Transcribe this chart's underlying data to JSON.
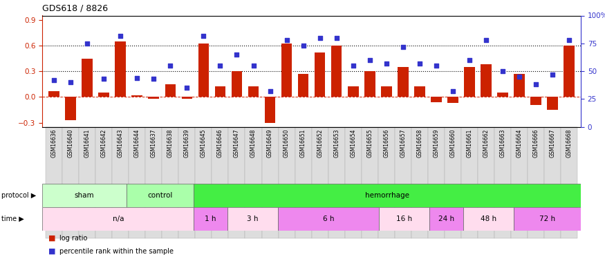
{
  "title": "GDS618 / 8826",
  "samples": [
    "GSM16636",
    "GSM16640",
    "GSM16641",
    "GSM16642",
    "GSM16643",
    "GSM16644",
    "GSM16637",
    "GSM16638",
    "GSM16639",
    "GSM16645",
    "GSM16646",
    "GSM16647",
    "GSM16648",
    "GSM16649",
    "GSM16650",
    "GSM16651",
    "GSM16652",
    "GSM16653",
    "GSM16654",
    "GSM16655",
    "GSM16656",
    "GSM16657",
    "GSM16658",
    "GSM16659",
    "GSM16660",
    "GSM16661",
    "GSM16662",
    "GSM16663",
    "GSM16664",
    "GSM16666",
    "GSM16667",
    "GSM16668"
  ],
  "log_ratio": [
    0.07,
    -0.27,
    0.45,
    0.05,
    0.65,
    0.02,
    -0.02,
    0.15,
    -0.02,
    0.62,
    0.12,
    0.3,
    0.12,
    -0.3,
    0.62,
    0.27,
    0.52,
    0.6,
    0.12,
    0.3,
    0.12,
    0.35,
    0.12,
    -0.06,
    -0.07,
    0.35,
    0.38,
    0.05,
    0.27,
    -0.09,
    -0.15,
    0.6
  ],
  "pct_rank": [
    42,
    40,
    75,
    43,
    82,
    44,
    43,
    55,
    35,
    82,
    55,
    65,
    55,
    32,
    78,
    73,
    80,
    80,
    55,
    60,
    57,
    72,
    57,
    55,
    32,
    60,
    78,
    50,
    45,
    38,
    47,
    78
  ],
  "protocol_groups": [
    {
      "label": "sham",
      "start": 0,
      "end": 5
    },
    {
      "label": "control",
      "start": 5,
      "end": 9
    },
    {
      "label": "hemorrhage",
      "start": 9,
      "end": 32
    }
  ],
  "proto_colors": {
    "sham": "#CCFFCC",
    "control": "#AAFFAA",
    "hemorrhage": "#44EE44"
  },
  "time_groups": [
    {
      "label": "n/a",
      "start": 0,
      "end": 9
    },
    {
      "label": "1 h",
      "start": 9,
      "end": 11
    },
    {
      "label": "3 h",
      "start": 11,
      "end": 14
    },
    {
      "label": "6 h",
      "start": 14,
      "end": 20
    },
    {
      "label": "16 h",
      "start": 20,
      "end": 23
    },
    {
      "label": "24 h",
      "start": 23,
      "end": 25
    },
    {
      "label": "48 h",
      "start": 25,
      "end": 28
    },
    {
      "label": "72 h",
      "start": 28,
      "end": 32
    }
  ],
  "time_colors": [
    "#FFDDEE",
    "#EE88EE",
    "#FFDDEE",
    "#EE88EE",
    "#FFDDEE",
    "#EE88EE",
    "#FFDDEE",
    "#EE88EE"
  ],
  "bar_color": "#CC2200",
  "dot_color": "#3333CC",
  "ylim_left": [
    -0.35,
    0.95
  ],
  "ylim_right": [
    0,
    100
  ],
  "yticks_left": [
    -0.3,
    0.0,
    0.3,
    0.6,
    0.9
  ],
  "yticks_right": [
    0,
    25,
    50,
    75,
    100
  ],
  "yticklabels_right": [
    "0",
    "25",
    "50",
    "75",
    "100%"
  ],
  "hlines": [
    0.3,
    0.6
  ],
  "zero_line_color": "#CC2200",
  "label_protocol": "protocol",
  "label_time": "time",
  "legend_items": [
    {
      "color": "#CC2200",
      "label": "log ratio"
    },
    {
      "color": "#3333CC",
      "label": "percentile rank within the sample"
    }
  ]
}
